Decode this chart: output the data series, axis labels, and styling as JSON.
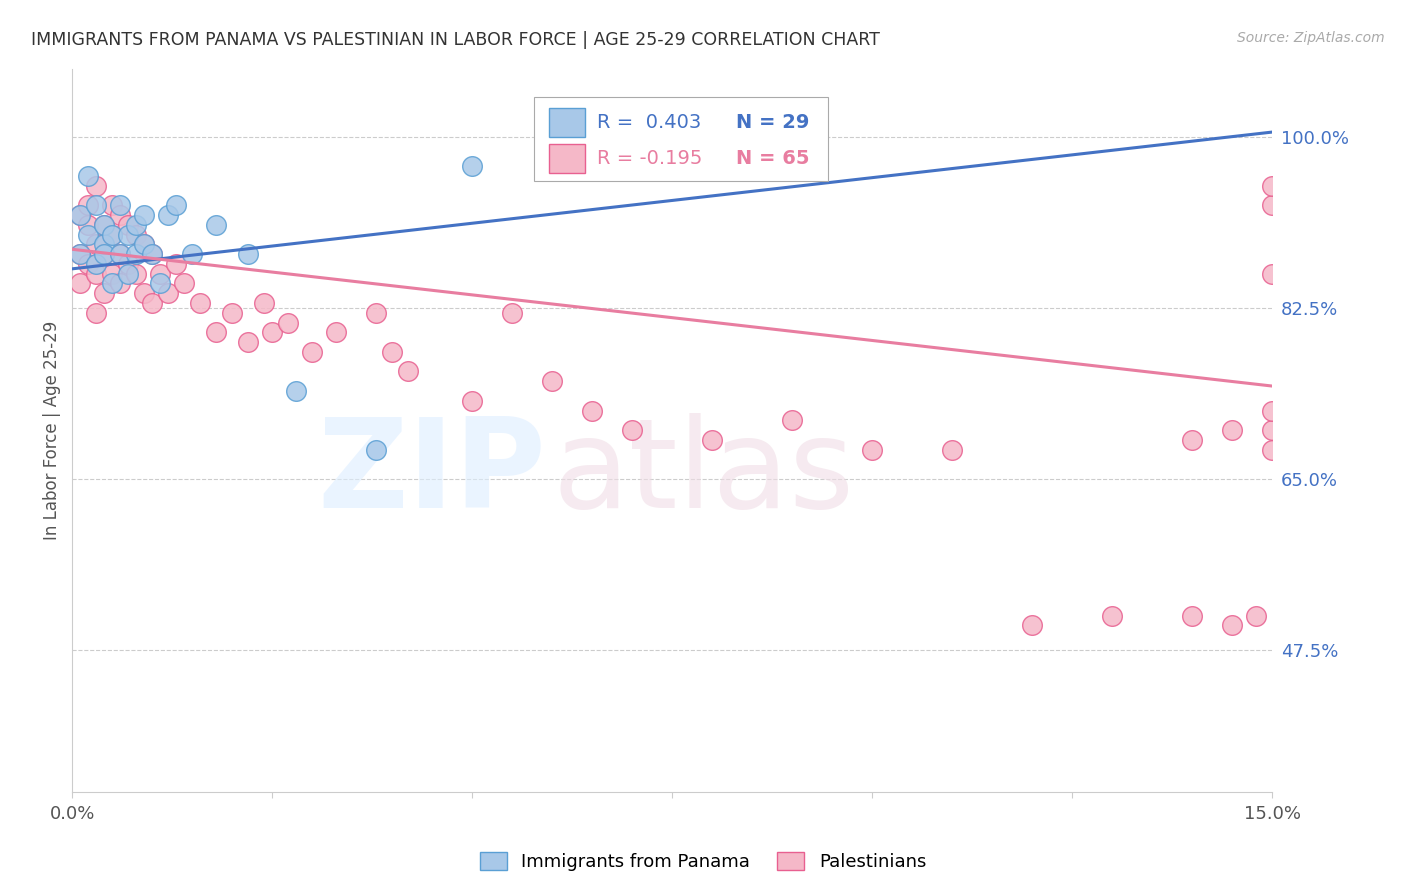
{
  "title": "IMMIGRANTS FROM PANAMA VS PALESTINIAN IN LABOR FORCE | AGE 25-29 CORRELATION CHART",
  "source": "Source: ZipAtlas.com",
  "ylabel": "In Labor Force | Age 25-29",
  "ytick_labels": [
    "100.0%",
    "82.5%",
    "65.0%",
    "47.5%"
  ],
  "ytick_values": [
    1.0,
    0.825,
    0.65,
    0.475
  ],
  "xlim": [
    0.0,
    0.15
  ],
  "ylim": [
    0.33,
    1.07
  ],
  "legend_r_panama": "R =  0.403",
  "legend_n_panama": "N = 29",
  "legend_r_pal": "R = -0.195",
  "legend_n_pal": "N = 65",
  "panama_color": "#a8c8e8",
  "palestinian_color": "#f5b8c8",
  "panama_edge_color": "#5a9fd4",
  "palestinian_edge_color": "#e86090",
  "panama_line_color": "#4472c4",
  "palestinian_line_color": "#e87da0",
  "panama_x": [
    0.001,
    0.001,
    0.002,
    0.002,
    0.003,
    0.003,
    0.004,
    0.004,
    0.004,
    0.005,
    0.005,
    0.006,
    0.006,
    0.007,
    0.007,
    0.008,
    0.008,
    0.009,
    0.009,
    0.01,
    0.011,
    0.012,
    0.013,
    0.015,
    0.018,
    0.022,
    0.028,
    0.038,
    0.05
  ],
  "panama_y": [
    0.88,
    0.92,
    0.9,
    0.96,
    0.87,
    0.93,
    0.89,
    0.91,
    0.88,
    0.9,
    0.85,
    0.88,
    0.93,
    0.9,
    0.86,
    0.91,
    0.88,
    0.92,
    0.89,
    0.88,
    0.85,
    0.92,
    0.93,
    0.88,
    0.91,
    0.88,
    0.74,
    0.68,
    0.97
  ],
  "pal_x": [
    0.001,
    0.001,
    0.001,
    0.002,
    0.002,
    0.002,
    0.003,
    0.003,
    0.003,
    0.003,
    0.004,
    0.004,
    0.004,
    0.005,
    0.005,
    0.005,
    0.006,
    0.006,
    0.006,
    0.007,
    0.007,
    0.008,
    0.008,
    0.009,
    0.009,
    0.01,
    0.01,
    0.011,
    0.012,
    0.013,
    0.014,
    0.016,
    0.018,
    0.02,
    0.022,
    0.024,
    0.025,
    0.027,
    0.03,
    0.033,
    0.038,
    0.04,
    0.042,
    0.05,
    0.055,
    0.06,
    0.065,
    0.07,
    0.08,
    0.09,
    0.1,
    0.11,
    0.12,
    0.13,
    0.14,
    0.14,
    0.145,
    0.145,
    0.148,
    0.15,
    0.15,
    0.15,
    0.15,
    0.15,
    0.15
  ],
  "pal_y": [
    0.92,
    0.88,
    0.85,
    0.93,
    0.91,
    0.87,
    0.95,
    0.89,
    0.86,
    0.82,
    0.91,
    0.88,
    0.84,
    0.93,
    0.9,
    0.86,
    0.88,
    0.85,
    0.92,
    0.91,
    0.87,
    0.9,
    0.86,
    0.89,
    0.84,
    0.88,
    0.83,
    0.86,
    0.84,
    0.87,
    0.85,
    0.83,
    0.8,
    0.82,
    0.79,
    0.83,
    0.8,
    0.81,
    0.78,
    0.8,
    0.82,
    0.78,
    0.76,
    0.73,
    0.82,
    0.75,
    0.72,
    0.7,
    0.69,
    0.71,
    0.68,
    0.68,
    0.5,
    0.51,
    0.51,
    0.69,
    0.7,
    0.5,
    0.51,
    0.68,
    0.93,
    0.86,
    0.7,
    0.72,
    0.95
  ],
  "pan_line_x0": 0.0,
  "pan_line_x1": 0.15,
  "pan_line_y0": 0.865,
  "pan_line_y1": 1.005,
  "pal_line_x0": 0.0,
  "pal_line_x1": 0.15,
  "pal_line_y0": 0.885,
  "pal_line_y1": 0.745
}
